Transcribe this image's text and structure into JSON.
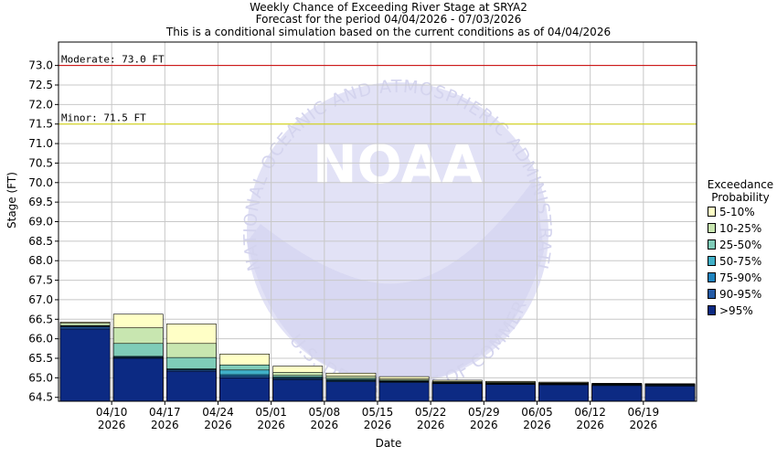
{
  "header": {
    "line1": "Weekly Chance of Exceeding River Stage at SRYA2",
    "line2": "Forecast for the period 04/04/2026 - 07/03/2026",
    "line3": "This is a conditional simulation based on the current conditions as of 04/04/2026"
  },
  "chart_data": {
    "type": "bar",
    "ylabel": "Stage (FT)",
    "xlabel": "Date",
    "ylim": [
      64.4,
      73.6
    ],
    "yticks": [
      "73.0",
      "72.5",
      "72.0",
      "71.5",
      "71.0",
      "70.5",
      "70.0",
      "69.5",
      "69.0",
      "68.5",
      "68.0",
      "67.5",
      "67.0",
      "66.5",
      "66.0",
      "65.5",
      "65.0",
      "64.5"
    ],
    "tick_dates": [
      "04/10",
      "04/17",
      "04/24",
      "05/01",
      "05/08",
      "05/15",
      "05/22",
      "05/29",
      "06/05",
      "06/12",
      "06/19"
    ],
    "tick_year": "2026",
    "thresholds": [
      {
        "label": "Moderate: 73.0 FT",
        "value": 73.0,
        "color": "#cc0000"
      },
      {
        "label": "Minor: 71.5 FT",
        "value": 71.5,
        "color": "#d4d400"
      }
    ],
    "legend_title": "Exceedance Probability",
    "legend": [
      "5-10%",
      "10-25%",
      "25-50%",
      "50-75%",
      "75-90%",
      "90-95%",
      ">95%"
    ],
    "colors": [
      "#ffffc6",
      "#c8e6b0",
      "#7fccb8",
      "#40b0c8",
      "#1f84bf",
      "#235aa5",
      "#0c2a83"
    ],
    "weeks": [
      {
        "p95": 66.25,
        "p90_95": 66.3,
        "p75_90": 66.32,
        "p50_75": 66.33,
        "p25_50": 66.34,
        "p10_25": 66.4,
        "p5_10": 66.43
      },
      {
        "p95": 65.5,
        "p90_95": 65.52,
        "p75_90": 65.54,
        "p50_75": 65.55,
        "p25_50": 65.88,
        "p10_25": 66.28,
        "p5_10": 66.63
      },
      {
        "p95": 65.17,
        "p90_95": 65.2,
        "p75_90": 65.22,
        "p50_75": 65.23,
        "p25_50": 65.52,
        "p10_25": 65.88,
        "p5_10": 66.38
      },
      {
        "p95": 65.0,
        "p90_95": 65.04,
        "p75_90": 65.08,
        "p50_75": 65.2,
        "p25_50": 65.33,
        "p10_25": 65.33,
        "p5_10": 65.61
      },
      {
        "p95": 64.95,
        "p90_95": 64.98,
        "p75_90": 65.0,
        "p50_75": 65.02,
        "p25_50": 65.06,
        "p10_25": 65.14,
        "p5_10": 65.3
      },
      {
        "p95": 64.9,
        "p90_95": 64.92,
        "p75_90": 64.94,
        "p50_75": 64.96,
        "p25_50": 64.99,
        "p10_25": 65.04,
        "p5_10": 65.12
      },
      {
        "p95": 64.88,
        "p90_95": 64.9,
        "p75_90": 64.91,
        "p50_75": 64.92,
        "p25_50": 64.94,
        "p10_25": 64.97,
        "p5_10": 65.03
      },
      {
        "p95": 64.85,
        "p90_95": 64.86,
        "p75_90": 64.87,
        "p50_75": 64.88,
        "p25_50": 64.89,
        "p10_25": 64.91,
        "p5_10": 64.94
      },
      {
        "p95": 64.83,
        "p90_95": 64.84,
        "p75_90": 64.85,
        "p50_75": 64.86,
        "p25_50": 64.87,
        "p10_25": 64.89,
        "p5_10": 64.91
      },
      {
        "p95": 64.82,
        "p90_95": 64.83,
        "p75_90": 64.84,
        "p50_75": 64.85,
        "p25_50": 64.86,
        "p10_25": 64.87,
        "p5_10": 64.89
      },
      {
        "p95": 64.8,
        "p90_95": 64.81,
        "p75_90": 64.82,
        "p50_75": 64.83,
        "p25_50": 64.84,
        "p10_25": 64.85,
        "p5_10": 64.86
      },
      {
        "p95": 64.79,
        "p90_95": 64.8,
        "p75_90": 64.81,
        "p50_75": 64.82,
        "p25_50": 64.83,
        "p10_25": 64.84,
        "p5_10": 64.85
      }
    ],
    "watermark_text": "NATIONAL OCEANIC AND ATMOSPHERIC ADMINISTRATION",
    "watermark_bottom": "U.S. DEPARTMENT OF COMMERCE",
    "watermark_logo": "NOAA"
  }
}
